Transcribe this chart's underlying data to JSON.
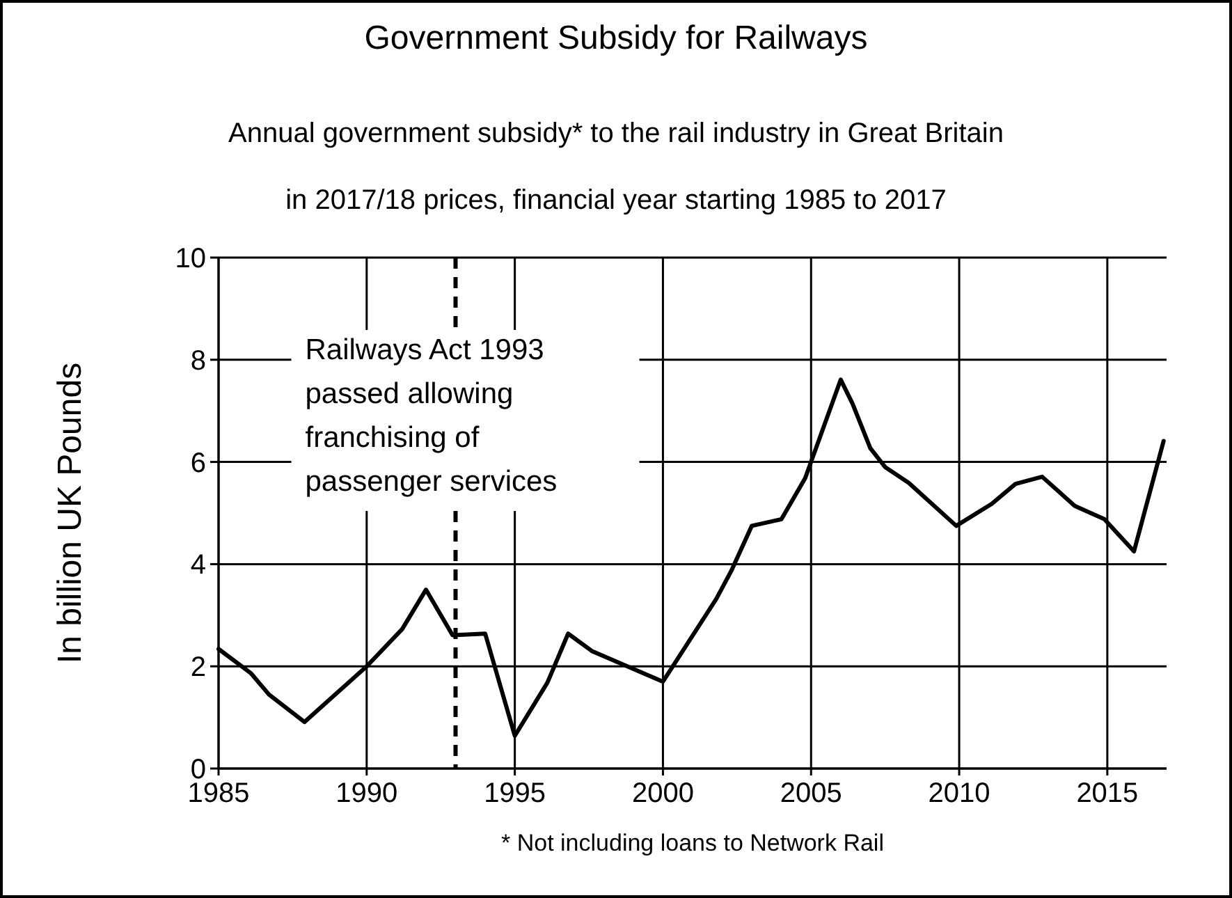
{
  "chart_data": {
    "type": "line",
    "title": "Government  Subsidy for Railways",
    "subtitle": "Annual government subsidy* to the rail industry in Great Britain\nin 2017/18 prices, financial year starting 1985 to 2017",
    "ylabel": "In billion UK Pounds",
    "annotations": [
      "* Not including loans to Network Rail"
    ],
    "xlim": [
      1985,
      2017
    ],
    "xticks": [
      1985,
      1990,
      1995,
      2000,
      2005,
      2010,
      2015
    ],
    "ylim": [
      0,
      10
    ],
    "yticks": [
      0,
      2,
      4,
      6,
      8,
      10
    ],
    "grid": true,
    "marker": "none",
    "line_style": "solid",
    "ref_lines": [
      {
        "axis": "x",
        "value": 1993,
        "line_style": "dashed",
        "label": "Railways Act 1993\npassed allowing\nfranchising of\npassenger services"
      }
    ],
    "series": [
      {
        "color": "#000000",
        "x": [
          1985,
          1986.1,
          1986.7,
          1987.9,
          1990,
          1991.2,
          1992,
          1992.9,
          1994,
          1995,
          1996.1,
          1996.8,
          1997.6,
          2000,
          2001.8,
          2002.3,
          2003,
          2004,
          2004.8,
          2006,
          2006.4,
          2007,
          2007.5,
          2008.3,
          2009.9,
          2011.1,
          2011.9,
          2012.8,
          2013.9,
          2014.9,
          2015.9,
          2016.9
        ],
        "values": [
          2.34,
          1.86,
          1.45,
          0.91,
          2.0,
          2.73,
          3.5,
          2.61,
          2.64,
          0.64,
          1.68,
          2.64,
          2.3,
          1.7,
          3.32,
          3.86,
          4.75,
          4.88,
          5.68,
          7.61,
          7.14,
          6.27,
          5.9,
          5.59,
          4.75,
          5.18,
          5.57,
          5.71,
          5.14,
          4.88,
          4.25,
          6.41
        ]
      }
    ]
  }
}
